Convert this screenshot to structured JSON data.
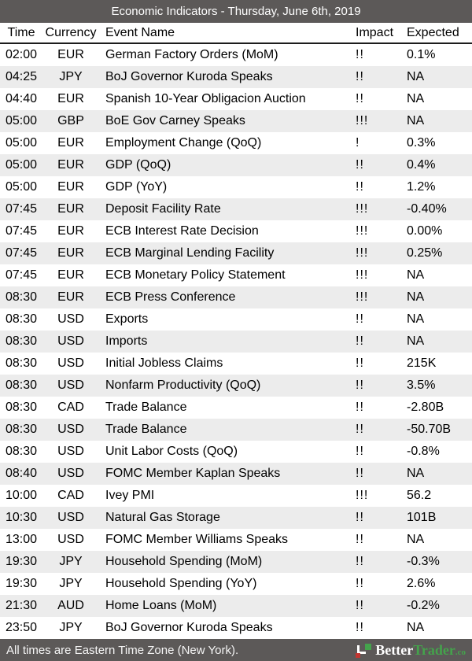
{
  "title": "Economic Indicators - Thursday, June 6th, 2019",
  "columns": [
    "Time",
    "Currency",
    "Event Name",
    "Impact",
    "Expected"
  ],
  "table": {
    "rows": [
      {
        "time": "02:00",
        "currency": "EUR",
        "event": "German Factory Orders (MoM)",
        "impact": "!!",
        "expected": "0.1%"
      },
      {
        "time": "04:25",
        "currency": "JPY",
        "event": "BoJ Governor Kuroda Speaks",
        "impact": "!!",
        "expected": "NA"
      },
      {
        "time": "04:40",
        "currency": "EUR",
        "event": "Spanish 10-Year Obligacion Auction",
        "impact": "!!",
        "expected": "NA"
      },
      {
        "time": "05:00",
        "currency": "GBP",
        "event": "BoE Gov Carney Speaks",
        "impact": "!!!",
        "expected": "NA"
      },
      {
        "time": "05:00",
        "currency": "EUR",
        "event": "Employment Change (QoQ)",
        "impact": "!",
        "expected": "0.3%"
      },
      {
        "time": "05:00",
        "currency": "EUR",
        "event": "GDP (QoQ)",
        "impact": "!!",
        "expected": "0.4%"
      },
      {
        "time": "05:00",
        "currency": "EUR",
        "event": "GDP (YoY)",
        "impact": "!!",
        "expected": "1.2%"
      },
      {
        "time": "07:45",
        "currency": "EUR",
        "event": "Deposit Facility Rate",
        "impact": "!!!",
        "expected": "-0.40%"
      },
      {
        "time": "07:45",
        "currency": "EUR",
        "event": "ECB Interest Rate Decision",
        "impact": "!!!",
        "expected": "0.00%"
      },
      {
        "time": "07:45",
        "currency": "EUR",
        "event": "ECB Marginal Lending Facility",
        "impact": "!!!",
        "expected": "0.25%"
      },
      {
        "time": "07:45",
        "currency": "EUR",
        "event": "ECB Monetary Policy Statement",
        "impact": "!!!",
        "expected": "NA"
      },
      {
        "time": "08:30",
        "currency": "EUR",
        "event": "ECB Press Conference",
        "impact": "!!!",
        "expected": "NA"
      },
      {
        "time": "08:30",
        "currency": "USD",
        "event": "Exports",
        "impact": "!!",
        "expected": "NA"
      },
      {
        "time": "08:30",
        "currency": "USD",
        "event": "Imports",
        "impact": "!!",
        "expected": "NA"
      },
      {
        "time": "08:30",
        "currency": "USD",
        "event": "Initial Jobless Claims",
        "impact": "!!",
        "expected": "215K"
      },
      {
        "time": "08:30",
        "currency": "USD",
        "event": "Nonfarm Productivity (QoQ)",
        "impact": "!!",
        "expected": "3.5%"
      },
      {
        "time": "08:30",
        "currency": "CAD",
        "event": "Trade Balance",
        "impact": "!!",
        "expected": "-2.80B"
      },
      {
        "time": "08:30",
        "currency": "USD",
        "event": "Trade Balance",
        "impact": "!!",
        "expected": "-50.70B"
      },
      {
        "time": "08:30",
        "currency": "USD",
        "event": "Unit Labor Costs (QoQ)",
        "impact": "!!",
        "expected": "-0.8%"
      },
      {
        "time": "08:40",
        "currency": "USD",
        "event": "FOMC Member Kaplan Speaks",
        "impact": "!!",
        "expected": "NA"
      },
      {
        "time": "10:00",
        "currency": "CAD",
        "event": "Ivey PMI",
        "impact": "!!!",
        "expected": "56.2"
      },
      {
        "time": "10:30",
        "currency": "USD",
        "event": "Natural Gas Storage",
        "impact": "!!",
        "expected": "101B"
      },
      {
        "time": "13:00",
        "currency": "USD",
        "event": "FOMC Member Williams Speaks",
        "impact": "!!",
        "expected": "NA"
      },
      {
        "time": "19:30",
        "currency": "JPY",
        "event": "Household Spending (MoM)",
        "impact": "!!",
        "expected": "-0.3%"
      },
      {
        "time": "19:30",
        "currency": "JPY",
        "event": "Household Spending (YoY)",
        "impact": "!!",
        "expected": "2.6%"
      },
      {
        "time": "21:30",
        "currency": "AUD",
        "event": "Home Loans (MoM)",
        "impact": "!!",
        "expected": "-0.2%"
      },
      {
        "time": "23:50",
        "currency": "JPY",
        "event": "BoJ Governor Kuroda Speaks",
        "impact": "!!",
        "expected": "NA"
      }
    ]
  },
  "footer": {
    "note": "All times are Eastern Time Zone (New York).",
    "brand": {
      "better": "Better",
      "trader": "Trader",
      "tld": ".co"
    }
  },
  "colors": {
    "bar": "#5c5958",
    "stripe": "#ececec",
    "header_border": "#1c1c1c",
    "brand_green": "#44a34c",
    "brand_red": "#c23631"
  }
}
